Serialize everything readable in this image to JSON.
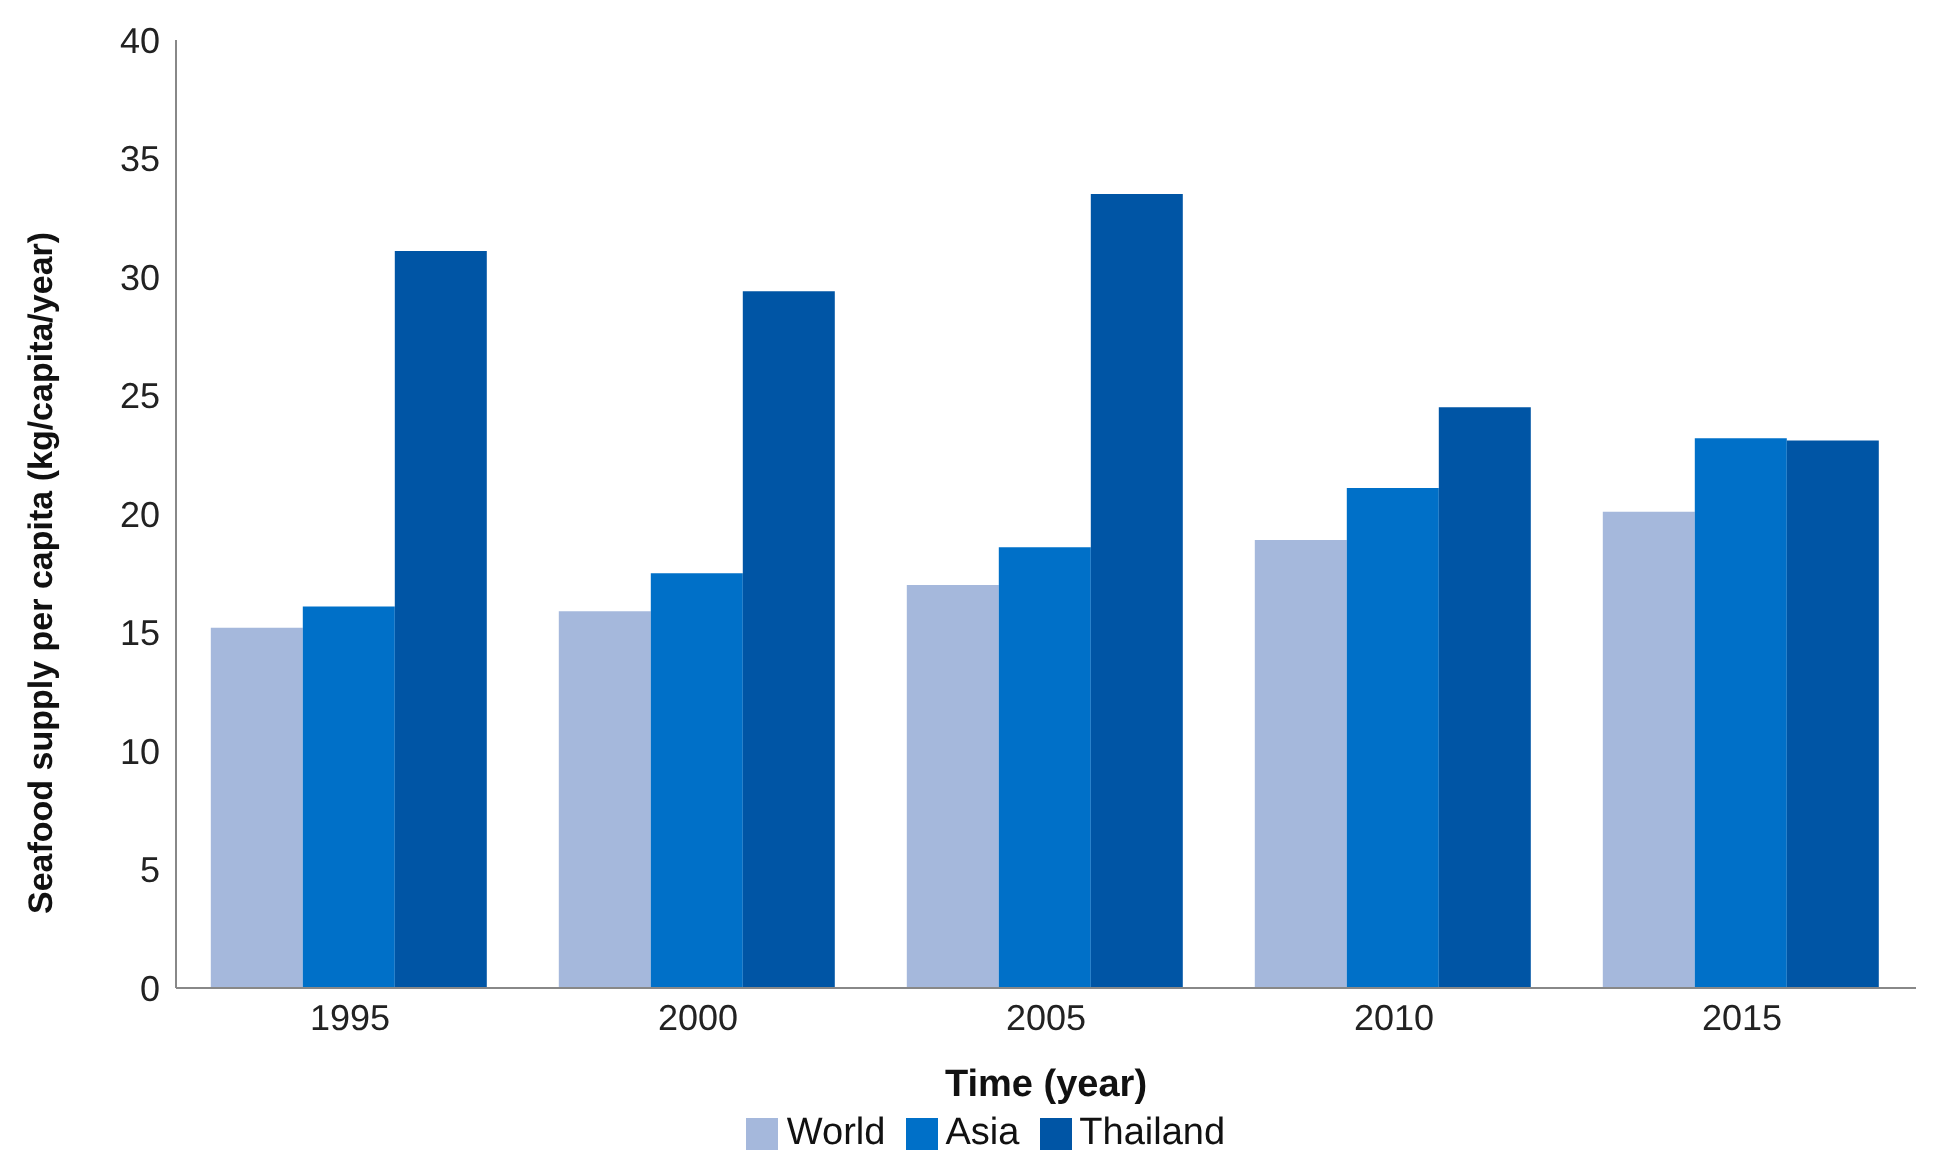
{
  "chart_data": {
    "type": "bar",
    "xlabel": "Time (year)",
    "ylabel": "Seafood supply per capita (kg/capita/year)",
    "categories": [
      "1995",
      "2000",
      "2005",
      "2010",
      "2015"
    ],
    "series": [
      {
        "name": "World",
        "color": "#a5b8dc",
        "values": [
          15.2,
          15.9,
          17.0,
          18.9,
          20.1
        ]
      },
      {
        "name": "Asia",
        "color": "#0070c8",
        "values": [
          16.1,
          17.5,
          18.6,
          21.1,
          23.2
        ]
      },
      {
        "name": "Thailand",
        "color": "#0055a5",
        "values": [
          31.1,
          29.4,
          33.5,
          24.5,
          23.1
        ]
      }
    ],
    "ylim": [
      0,
      40
    ],
    "yticks": [
      0,
      5,
      10,
      15,
      20,
      25,
      30,
      35,
      40
    ],
    "grid": false,
    "legend": "bottom"
  }
}
